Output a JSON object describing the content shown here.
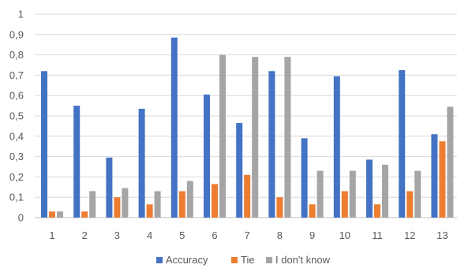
{
  "chart_data": {
    "type": "bar",
    "title": "",
    "xlabel": "",
    "ylabel": "",
    "ylim": [
      0,
      1
    ],
    "yticks": [
      "0",
      "0,1",
      "0,2",
      "0,3",
      "0,4",
      "0,5",
      "0,6",
      "0,7",
      "0,8",
      "0,9",
      "1"
    ],
    "categories": [
      "1",
      "2",
      "3",
      "4",
      "5",
      "6",
      "7",
      "8",
      "9",
      "10",
      "11",
      "12",
      "13"
    ],
    "grid": "horizontal",
    "legend_position": "bottom",
    "series": [
      {
        "name": "Accuracy",
        "color": "#4472c4",
        "values": [
          0.72,
          0.55,
          0.295,
          0.535,
          0.885,
          0.605,
          0.465,
          0.72,
          0.39,
          0.695,
          0.285,
          0.725,
          0.41
        ]
      },
      {
        "name": "Tie",
        "color": "#ed7d31",
        "values": [
          0.03,
          0.03,
          0.1,
          0.065,
          0.13,
          0.165,
          0.21,
          0.1,
          0.065,
          0.13,
          0.065,
          0.13,
          0.375
        ]
      },
      {
        "name": "I don't know",
        "color": "#a5a5a5",
        "values": [
          0.03,
          0.13,
          0.145,
          0.13,
          0.18,
          0.8,
          0.79,
          0.79,
          0.23,
          0.23,
          0.26,
          0.23,
          0.545
        ]
      }
    ]
  }
}
